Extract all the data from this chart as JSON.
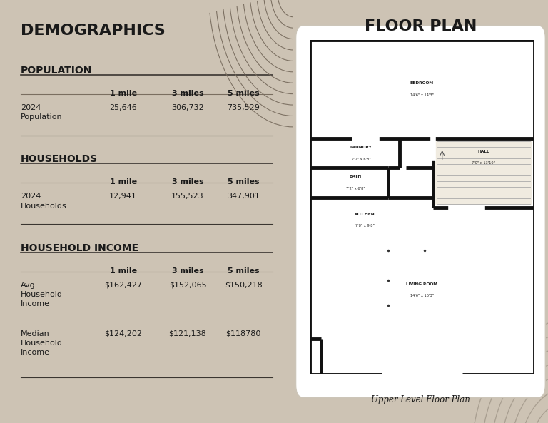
{
  "bg_color": "#cdc3b4",
  "left_bg": "#e2dbd0",
  "right_bg": "#bfb8ab",
  "title_left": "DEMOGRAPHICS",
  "title_right": "FLOOR PLAN",
  "subtitle_fp": "Upper Level Floor Plan",
  "sections": [
    {
      "title": "POPULATION",
      "headers": [
        "",
        "1 mile",
        "3 miles",
        "5 miles"
      ],
      "rows": [
        [
          "2024\nPopulation",
          "25,646",
          "306,732",
          "735,529"
        ]
      ]
    },
    {
      "title": "HOUSEHOLDS",
      "headers": [
        "",
        "1 mile",
        "3 miles",
        "5 miles"
      ],
      "rows": [
        [
          "2024\nHouseholds",
          "12,941",
          "155,523",
          "347,901"
        ]
      ]
    },
    {
      "title": "HOUSEHOLD INCOME",
      "headers": [
        "",
        "1 mile",
        "3 miles",
        "5 miles"
      ],
      "rows": [
        [
          "Avg\nHousehold\nIncome",
          "$162,427",
          "$152,065",
          "$150,218"
        ],
        [
          "Median\nHousehold\nIncome",
          "$124,202",
          "$121,138",
          "$118780"
        ]
      ]
    }
  ]
}
